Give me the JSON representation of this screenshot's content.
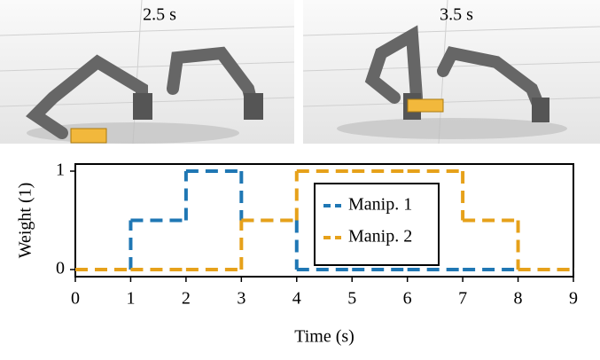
{
  "panels": [
    {
      "label": "2.5 s"
    },
    {
      "label": "3.5 s"
    }
  ],
  "chart_data": {
    "type": "line",
    "step": "post",
    "xlabel": "Time (s)",
    "ylabel": "Weight (1)",
    "x": [
      0,
      1,
      2,
      3,
      4,
      5,
      6,
      7,
      8,
      9
    ],
    "series": [
      {
        "name": "Manip. 1",
        "color": "#1f77b4",
        "values": [
          0,
          0.5,
          1,
          0.5,
          0,
          0,
          0,
          0,
          0,
          0
        ]
      },
      {
        "name": "Manip. 2",
        "color": "#e6a11a",
        "values": [
          0,
          0,
          0,
          0.5,
          1,
          1,
          1,
          0.5,
          0,
          0
        ]
      }
    ],
    "xlim": [
      0,
      9
    ],
    "xticks": [
      0,
      1,
      2,
      3,
      4,
      5,
      6,
      7,
      8,
      9
    ],
    "ylim": [
      0,
      1
    ],
    "yticks": [
      0,
      1
    ],
    "linestyle": "dashed",
    "legend": "center"
  }
}
